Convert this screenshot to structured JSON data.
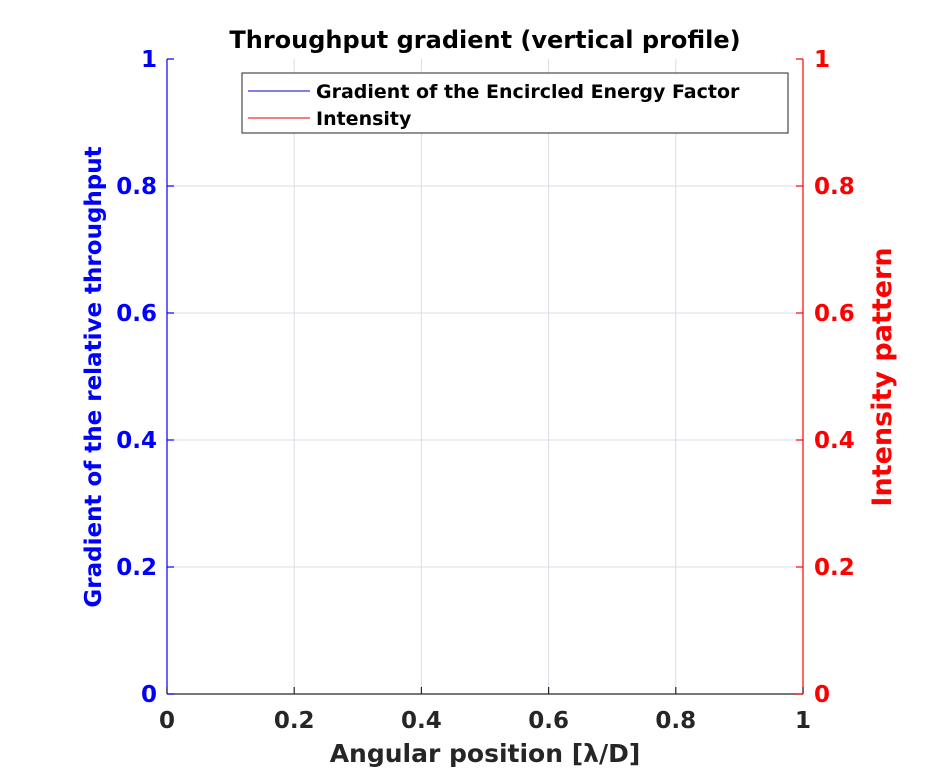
{
  "chart_data": {
    "type": "line",
    "title": "Throughput gradient (vertical profile)",
    "xlabel": "Angular position [λ/D]",
    "ylabel_left": "Gradient of the relative throughput",
    "ylabel_right": "Intensity pattern",
    "xlim": [
      0,
      1
    ],
    "ylim_left": [
      0,
      1
    ],
    "ylim_right": [
      0,
      1
    ],
    "x_ticks": [
      "0",
      "0.2",
      "0.4",
      "0.6",
      "0.8",
      "1"
    ],
    "y_ticks_left": [
      "0",
      "0.2",
      "0.4",
      "0.6",
      "0.8",
      "1"
    ],
    "y_ticks_right": [
      "0",
      "0.2",
      "0.4",
      "0.6",
      "0.8",
      "1"
    ],
    "grid": true,
    "legend_position": "top-right",
    "series": [
      {
        "name": "Gradient of the Encircled Energy Factor",
        "axis": "left",
        "color": "#0000cc",
        "x": [],
        "y": []
      },
      {
        "name": "Intensity",
        "axis": "right",
        "color": "#e60000",
        "x": [],
        "y": []
      }
    ],
    "colors": {
      "left_axis": "#0000ff",
      "right_axis": "#ff0000",
      "text": "#262626",
      "grid": "#dbdbe8"
    }
  }
}
